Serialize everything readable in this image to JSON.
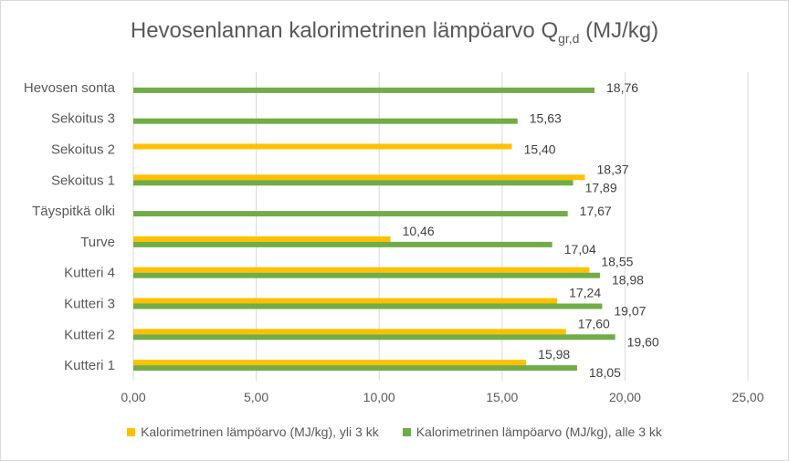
{
  "chart_data": {
    "type": "bar",
    "orientation": "horizontal",
    "title_main": "Hevosenlannan kalorimetrinen lämpöarvo Q",
    "title_sub": "gr,d",
    "title_unit": " (MJ/kg)",
    "categories": [
      "Kutteri 1",
      "Kutteri 2",
      "Kutteri 3",
      "Kutteri 4",
      "Turve",
      "Täyspitkä olki",
      "Sekoitus 1",
      "Sekoitus 2",
      "Sekoitus 3",
      "Hevosen sonta"
    ],
    "series": [
      {
        "name": "Kalorimetrinen lämpöarvo (MJ/kg), yli 3 kk",
        "color": "#ffc000",
        "values": [
          15.98,
          17.6,
          17.24,
          18.55,
          10.46,
          null,
          18.37,
          15.4,
          null,
          null
        ],
        "labels": [
          "15,98",
          "17,60",
          "17,24",
          "18,55",
          "10,46",
          "",
          "18,37",
          "15,40",
          "",
          ""
        ]
      },
      {
        "name": "Kalorimetrinen lämpöarvo (MJ/kg), alle 3 kk",
        "color": "#70ad47",
        "values": [
          18.05,
          19.6,
          19.07,
          18.98,
          17.04,
          17.67,
          17.89,
          null,
          15.63,
          18.76
        ],
        "labels": [
          "18,05",
          "19,60",
          "19,07",
          "18,98",
          "17,04",
          "17,67",
          "17,89",
          "",
          "15,63",
          "18,76"
        ]
      }
    ],
    "xlim": [
      0,
      25
    ],
    "xticks": [
      "0,00",
      "5,00",
      "10,00",
      "15,00",
      "20,00",
      "25,00"
    ],
    "grid": true,
    "legend_position": "bottom"
  }
}
